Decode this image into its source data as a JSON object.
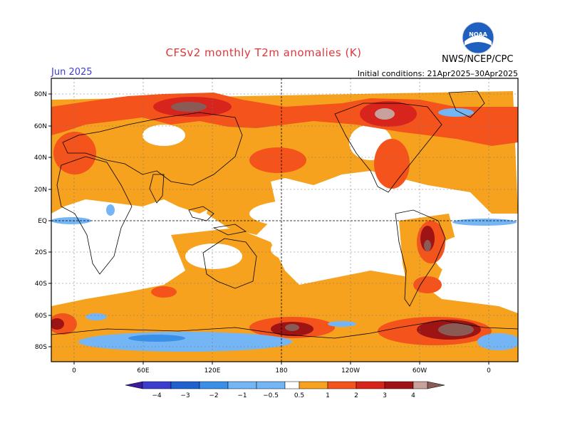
{
  "header": {
    "title": "CFSv2 monthly T2m anomalies (K)",
    "agency": "NWS/NCEP/CPC",
    "month": "Jun 2025",
    "initial_conditions": "Initial conditions: 21Apr2025–30Apr2025"
  },
  "logo": {
    "icon": "noaa-logo-icon",
    "colors": [
      "#1f5fbf",
      "#ffffff"
    ]
  },
  "map": {
    "lat_labels": [
      "80N",
      "60N",
      "40N",
      "20N",
      "EQ",
      "20S",
      "40S",
      "60S",
      "80S"
    ],
    "lon_labels": [
      "0",
      "60E",
      "120E",
      "180",
      "120W",
      "60W",
      "0"
    ]
  },
  "legend": {
    "ticks": [
      "−4",
      "−3",
      "−2",
      "−1",
      "−0.5",
      "0.5",
      "1",
      "2",
      "3",
      "4"
    ],
    "colors": {
      "below_-4": "#3a1a9e",
      "-4_-3": "#3c3ccf",
      "-3_-2": "#2160cf",
      "-2_-1": "#3a8fe6",
      "-1_-0.5": "#74b6f5",
      "-0.5_0.5": "#ffffff",
      "0.5_1": "#f6a21e",
      "1_2": "#f5531c",
      "2_3": "#d7241c",
      "3_4": "#9e1414",
      "4_5": "#c8a09c",
      "above_5": "#8a5a55"
    }
  }
}
